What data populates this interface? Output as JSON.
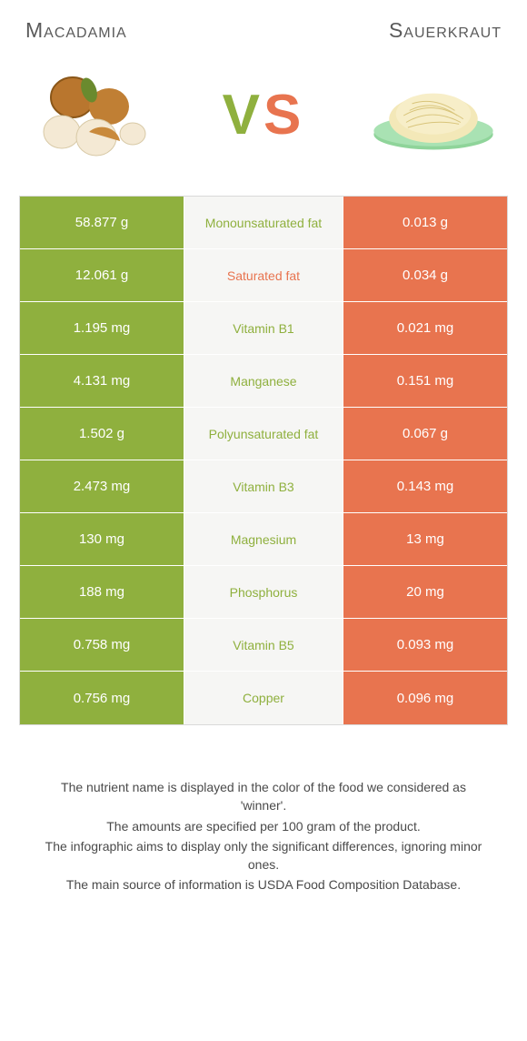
{
  "colors": {
    "left": "#8fb03e",
    "right": "#e8744f",
    "mid_bg": "#f6f6f4",
    "border": "#d9d9d9",
    "title_text": "#5a5a5a",
    "footer_text": "#4a4a4a"
  },
  "header": {
    "left_title": "Macadamia",
    "right_title": "Sauerkraut"
  },
  "vs": {
    "v": "V",
    "s": "S"
  },
  "table": {
    "rows": [
      {
        "left": "58.877 g",
        "label": "Monounsaturated fat",
        "right": "0.013 g",
        "winner": "left"
      },
      {
        "left": "12.061 g",
        "label": "Saturated fat",
        "right": "0.034 g",
        "winner": "right"
      },
      {
        "left": "1.195 mg",
        "label": "Vitamin B1",
        "right": "0.021 mg",
        "winner": "left"
      },
      {
        "left": "4.131 mg",
        "label": "Manganese",
        "right": "0.151 mg",
        "winner": "left"
      },
      {
        "left": "1.502 g",
        "label": "Polyunsaturated fat",
        "right": "0.067 g",
        "winner": "left"
      },
      {
        "left": "2.473 mg",
        "label": "Vitamin B3",
        "right": "0.143 mg",
        "winner": "left"
      },
      {
        "left": "130 mg",
        "label": "Magnesium",
        "right": "13 mg",
        "winner": "left"
      },
      {
        "left": "188 mg",
        "label": "Phosphorus",
        "right": "20 mg",
        "winner": "left"
      },
      {
        "left": "0.758 mg",
        "label": "Vitamin B5",
        "right": "0.093 mg",
        "winner": "left"
      },
      {
        "left": "0.756 mg",
        "label": "Copper",
        "right": "0.096 mg",
        "winner": "left"
      }
    ]
  },
  "footer": {
    "p1": "The nutrient name is displayed in the color of the food we considered as 'winner'.",
    "p2": "The amounts are specified per 100 gram of the product.",
    "p3": "The infographic aims to display only the significant differences, ignoring minor ones.",
    "p4": "The main source of information is USDA Food Composition Database."
  }
}
